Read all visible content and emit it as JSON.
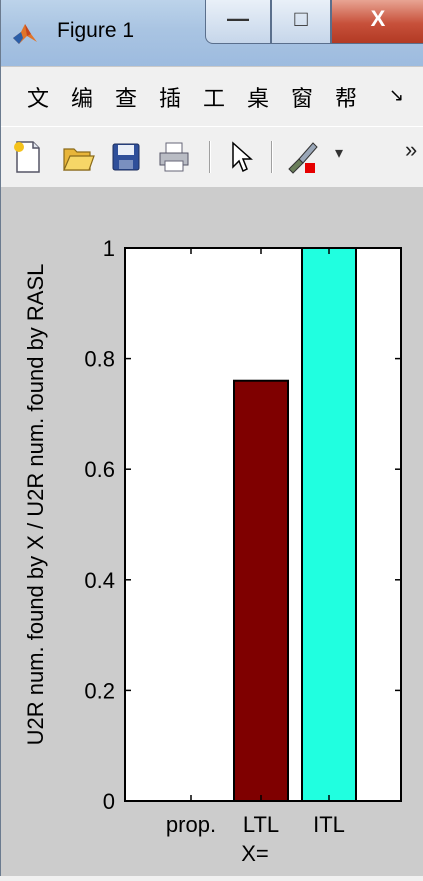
{
  "window": {
    "title": "Figure 1",
    "controls": {
      "minimize": "—",
      "maximize": "□",
      "close": "X"
    }
  },
  "menu": {
    "items": [
      "文",
      "编",
      "查",
      "插",
      "工",
      "桌",
      "窗",
      "帮",
      "↘"
    ]
  },
  "toolbar": {
    "overflow": "»",
    "dropdown_arrow": "▾",
    "icons": [
      "new-figure-icon",
      "open-file-icon",
      "save-icon",
      "print-icon",
      "pointer-icon",
      "brush-icon"
    ]
  },
  "chart_data": {
    "type": "bar",
    "categories": [
      "prop.",
      "LTL",
      "ITL"
    ],
    "values": [
      0,
      0.76,
      1.0
    ],
    "colors": [
      "#ffffff",
      "#7f0000",
      "#20ffe0"
    ],
    "ylim": [
      0,
      1
    ],
    "yticks": [
      "0",
      "0.2",
      "0.4",
      "0.6",
      "0.8",
      "1"
    ],
    "ytick_values": [
      0,
      0.2,
      0.4,
      0.6,
      0.8,
      1
    ],
    "xlabel": "X=",
    "ylabel": "U2R num. found by X / U2R num. found by RASL",
    "title": "",
    "grid": false
  }
}
